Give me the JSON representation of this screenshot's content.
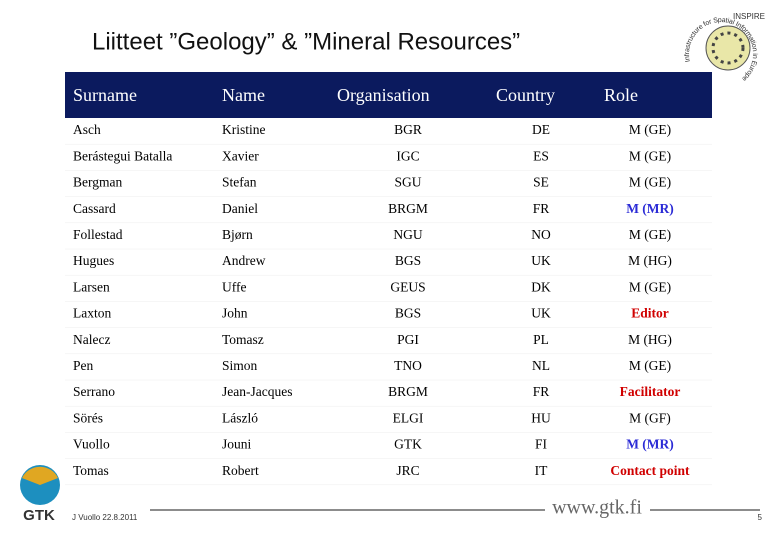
{
  "header": {
    "title": "Liitteet ”Geology” & ”Mineral Resources”"
  },
  "table": {
    "columns": [
      "Surname",
      "Name",
      "Organisation",
      "Country",
      "Role"
    ],
    "rows": [
      {
        "cells": [
          "Asch",
          "Kristine",
          "BGR",
          "DE",
          "M (GE)"
        ],
        "role_color": "#000000"
      },
      {
        "cells": [
          "Berástegui Batalla",
          "Xavier",
          "IGC",
          "ES",
          "M (GE)"
        ],
        "role_color": "#000000"
      },
      {
        "cells": [
          "Bergman",
          "Stefan",
          "SGU",
          "SE",
          "M (GE)"
        ],
        "role_color": "#000000"
      },
      {
        "cells": [
          "Cassard",
          "Daniel",
          "BRGM",
          "FR",
          "M (MR)"
        ],
        "role_color": "#2b2bd6"
      },
      {
        "cells": [
          "Follestad",
          "Bjørn",
          "NGU",
          "NO",
          "M (GE)"
        ],
        "role_color": "#000000"
      },
      {
        "cells": [
          "Hugues",
          "Andrew",
          "BGS",
          "UK",
          "M (HG)"
        ],
        "role_color": "#000000"
      },
      {
        "cells": [
          "Larsen",
          "Uffe",
          "GEUS",
          "DK",
          "M (GE)"
        ],
        "role_color": "#000000"
      },
      {
        "cells": [
          "Laxton",
          "John",
          "BGS",
          "UK",
          "Editor"
        ],
        "role_color": "#d00000"
      },
      {
        "cells": [
          "Nalecz",
          "Tomasz",
          "PGI",
          "PL",
          "M (HG)"
        ],
        "role_color": "#000000"
      },
      {
        "cells": [
          "Pen",
          "Simon",
          "TNO",
          "NL",
          "M (GE)"
        ],
        "role_color": "#000000"
      },
      {
        "cells": [
          "Serrano",
          "Jean-Jacques",
          "BRGM",
          "FR",
          "Facilitator"
        ],
        "role_color": "#d00000"
      },
      {
        "cells": [
          "Sörés",
          "László",
          "ELGI",
          "HU",
          "M (GF)"
        ],
        "role_color": "#000000"
      },
      {
        "cells": [
          "Vuollo",
          "Jouni",
          "GTK",
          "FI",
          "M (MR)"
        ],
        "role_color": "#2b2bd6"
      },
      {
        "cells": [
          "Tomas",
          "Robert",
          "JRC",
          "IT",
          "Contact point"
        ],
        "role_color": "#d00000"
      }
    ]
  },
  "footer": {
    "author": "J Vuollo 22.8.2011",
    "url": "www.gtk.fi",
    "page": "5"
  },
  "logos": {
    "gtk": "GTK",
    "inspire": "INSPIRE",
    "inspire_ring": "Infrastructure for Spatial Information in Europe"
  }
}
